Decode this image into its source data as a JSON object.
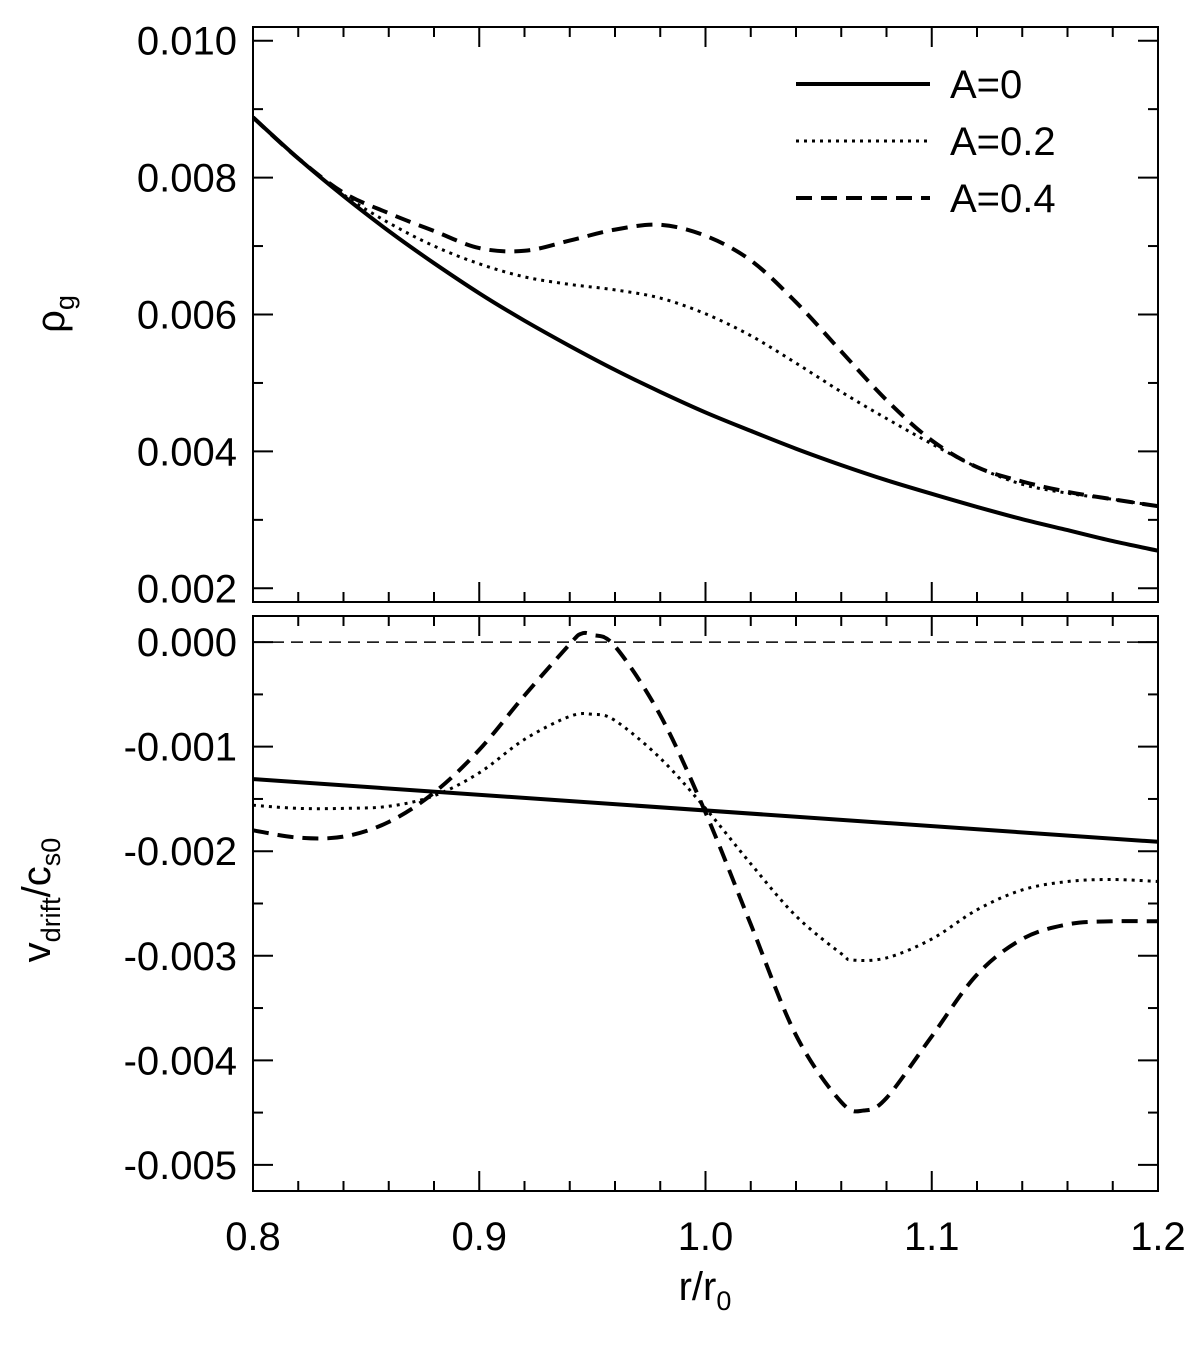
{
  "chart_data": [
    {
      "type": "line",
      "panel": "top",
      "ylabel": "ρ",
      "ylabel_sub": "g",
      "xlim": [
        0.8,
        1.2
      ],
      "ylim": [
        0.0018,
        0.0102
      ],
      "yticks": [
        0.002,
        0.004,
        0.006,
        0.008,
        0.01
      ],
      "ytick_labels": [
        "0.002",
        "0.004",
        "0.006",
        "0.008",
        "0.010"
      ],
      "xticks": [
        0.8,
        0.9,
        1.0,
        1.1,
        1.2
      ],
      "legend_position": "top-right",
      "series": [
        {
          "name": "A=0",
          "style": "solid",
          "x": [
            0.8,
            0.82,
            0.84,
            0.86,
            0.88,
            0.9,
            0.92,
            0.94,
            0.96,
            0.98,
            1.0,
            1.02,
            1.04,
            1.06,
            1.08,
            1.1,
            1.12,
            1.14,
            1.16,
            1.18,
            1.2
          ],
          "y": [
            0.00888,
            0.00828,
            0.00773,
            0.00722,
            0.00675,
            0.00631,
            0.00591,
            0.00554,
            0.00519,
            0.00487,
            0.00457,
            0.0043,
            0.00404,
            0.0038,
            0.00358,
            0.00338,
            0.00319,
            0.00301,
            0.00285,
            0.00269,
            0.00255
          ]
        },
        {
          "name": "A=0.2",
          "style": "dotted",
          "x": [
            0.8,
            0.82,
            0.84,
            0.86,
            0.88,
            0.9,
            0.92,
            0.94,
            0.96,
            0.98,
            1.0,
            1.02,
            1.04,
            1.06,
            1.08,
            1.1,
            1.12,
            1.14,
            1.16,
            1.18,
            1.2
          ],
          "y": [
            0.00888,
            0.00828,
            0.00775,
            0.00734,
            0.007,
            0.00674,
            0.00655,
            0.00644,
            0.00636,
            0.00624,
            0.00601,
            0.00569,
            0.00529,
            0.00487,
            0.00448,
            0.00411,
            0.00377,
            0.00352,
            0.00339,
            0.0033,
            0.0032
          ]
        },
        {
          "name": "A=0.4",
          "style": "dashed",
          "x": [
            0.8,
            0.82,
            0.84,
            0.86,
            0.88,
            0.9,
            0.92,
            0.94,
            0.96,
            0.98,
            1.0,
            1.02,
            1.04,
            1.06,
            1.08,
            1.1,
            1.12,
            1.14,
            1.16,
            1.18,
            1.2
          ],
          "y": [
            0.00888,
            0.00828,
            0.00778,
            0.00748,
            0.00722,
            0.00697,
            0.00693,
            0.00708,
            0.00724,
            0.00731,
            0.00715,
            0.00679,
            0.00618,
            0.00546,
            0.00475,
            0.00416,
            0.00377,
            0.00356,
            0.00341,
            0.0033,
            0.0032
          ]
        }
      ]
    },
    {
      "type": "line",
      "panel": "bottom",
      "ylabel": "v",
      "ylabel_sub1": "drift",
      "ylabel_mid": "/c",
      "ylabel_sub2": "s0",
      "xlabel": "r/r",
      "xlabel_sub": "0",
      "xlim": [
        0.8,
        1.2
      ],
      "ylim": [
        -0.00525,
        0.00025
      ],
      "yticks": [
        -0.005,
        -0.004,
        -0.003,
        -0.002,
        -0.001,
        0.0
      ],
      "ytick_labels": [
        "-0.005",
        "-0.004",
        "-0.003",
        "-0.002",
        "-0.001",
        "0.000"
      ],
      "xticks": [
        0.8,
        0.9,
        1.0,
        1.1,
        1.2
      ],
      "xtick_labels": [
        "0.8",
        "0.9",
        "1.0",
        "1.1",
        "1.2"
      ],
      "reference_line": {
        "y": 0.0,
        "style": "dashed-thin"
      },
      "series": [
        {
          "name": "A=0",
          "style": "solid",
          "x": [
            0.8,
            1.2
          ],
          "y": [
            -0.00131,
            -0.00191
          ]
        },
        {
          "name": "A=0.2",
          "style": "dotted",
          "x": [
            0.8,
            0.82,
            0.84,
            0.86,
            0.88,
            0.9,
            0.92,
            0.94,
            0.95,
            0.96,
            0.98,
            1.0,
            1.02,
            1.04,
            1.06,
            1.065,
            1.08,
            1.1,
            1.12,
            1.14,
            1.16,
            1.18,
            1.2
          ],
          "y": [
            -0.00156,
            -0.00159,
            -0.00159,
            -0.00157,
            -0.00147,
            -0.00125,
            -0.00093,
            -0.00071,
            -0.00069,
            -0.00075,
            -0.00111,
            -0.00159,
            -0.00212,
            -0.00262,
            -0.00298,
            -0.00304,
            -0.00302,
            -0.00284,
            -0.00256,
            -0.00237,
            -0.00229,
            -0.00227,
            -0.00229
          ]
        },
        {
          "name": "A=0.4",
          "style": "dashed",
          "x": [
            0.8,
            0.82,
            0.84,
            0.86,
            0.88,
            0.9,
            0.92,
            0.94,
            0.945,
            0.95,
            0.96,
            0.98,
            1.0,
            1.02,
            1.04,
            1.06,
            1.07,
            1.08,
            1.1,
            1.12,
            1.14,
            1.16,
            1.18,
            1.2
          ],
          "y": [
            -0.0018,
            -0.00187,
            -0.00186,
            -0.00172,
            -0.00144,
            -0.00103,
            -0.00051,
            -2e-05,
            8e-05,
            7e-05,
            -4e-05,
            -0.0007,
            -0.00163,
            -0.0027,
            -0.00376,
            -0.0044,
            -0.00448,
            -0.00436,
            -0.00377,
            -0.00318,
            -0.00284,
            -0.0027,
            -0.00267,
            -0.00267
          ]
        }
      ]
    }
  ]
}
